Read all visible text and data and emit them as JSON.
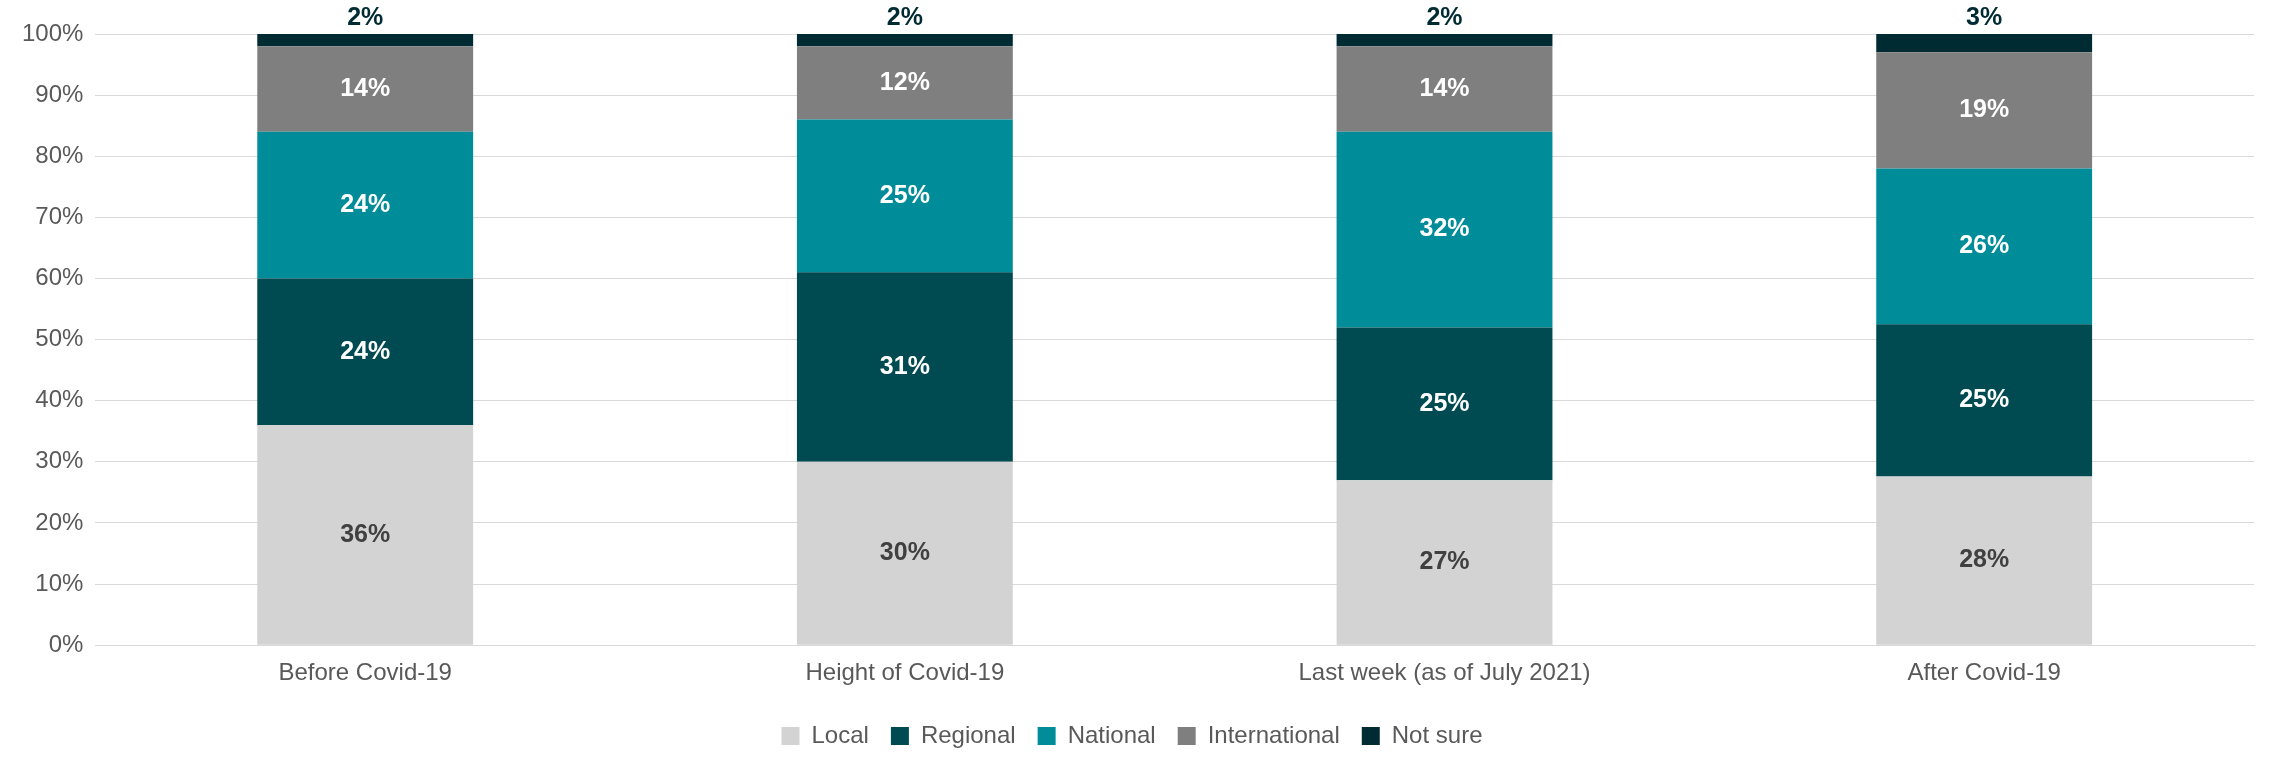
{
  "chart_data": {
    "type": "bar",
    "stacked": true,
    "categories": [
      "Before Covid-19",
      "Height of Covid-19",
      "Last week (as of July 2021)",
      "After Covid-19"
    ],
    "series": [
      {
        "name": "Local",
        "color": "#d3d3d3",
        "values": [
          36,
          30,
          27,
          27.6
        ],
        "value_labels": [
          "36%",
          "30%",
          "27%",
          "28%"
        ]
      },
      {
        "name": "Regional",
        "color": "#004b52",
        "values": [
          24,
          31,
          25,
          24.9
        ],
        "value_labels": [
          "24%",
          "31%",
          "25%",
          "25%"
        ]
      },
      {
        "name": "National",
        "color": "#008c99",
        "values": [
          24,
          25,
          32,
          25.5
        ],
        "value_labels": [
          "24%",
          "25%",
          "32%",
          "26%"
        ]
      },
      {
        "name": "International",
        "color": "#7f7f7f",
        "values": [
          14,
          12,
          14,
          19
        ],
        "value_labels": [
          "14%",
          "12%",
          "14%",
          "19%"
        ]
      },
      {
        "name": "Not sure",
        "color": "#002b33",
        "values": [
          2,
          2,
          2,
          3
        ],
        "value_labels": [
          "2%",
          "2%",
          "2%",
          "3%"
        ]
      }
    ],
    "ylim": [
      0,
      100
    ],
    "yticks": [
      {
        "value": 0,
        "label": "0%"
      },
      {
        "value": 10,
        "label": "10%"
      },
      {
        "value": 20,
        "label": "20%"
      },
      {
        "value": 30,
        "label": "30%"
      },
      {
        "value": 40,
        "label": "40%"
      },
      {
        "value": 50,
        "label": "50%"
      },
      {
        "value": 60,
        "label": "60%"
      },
      {
        "value": 70,
        "label": "70%"
      },
      {
        "value": 80,
        "label": "80%"
      },
      {
        "value": 90,
        "label": "90%"
      },
      {
        "value": 100,
        "label": "100%"
      }
    ],
    "grid": "y",
    "legend": "bottom"
  }
}
